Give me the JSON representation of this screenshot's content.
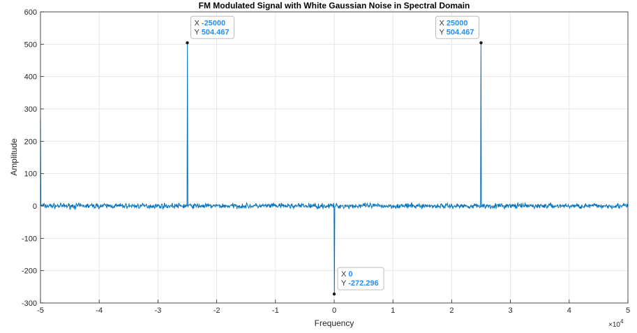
{
  "chart_data": {
    "type": "line",
    "title": "FM Modulated Signal with White Gaussian Noise in Spectral Domain",
    "xlabel": "Frequency",
    "ylabel": "Amplitude",
    "x_exponent_label": "×10",
    "x_exponent_power": "4",
    "xlim": [
      -50000,
      50000
    ],
    "ylim": [
      -300,
      600
    ],
    "x_scale_divisor": 10000,
    "xticks": [
      -50000,
      -40000,
      -30000,
      -20000,
      -10000,
      0,
      10000,
      20000,
      30000,
      40000,
      50000
    ],
    "xtick_labels": [
      "-5",
      "-4",
      "-3",
      "-2",
      "-1",
      "0",
      "1",
      "2",
      "3",
      "4",
      "5"
    ],
    "yticks": [
      -300,
      -200,
      -100,
      0,
      100,
      200,
      300,
      400,
      500,
      600
    ],
    "ytick_labels": [
      "-300",
      "-200",
      "-100",
      "0",
      "100",
      "200",
      "300",
      "400",
      "500",
      "600"
    ],
    "grid": true,
    "series_color": "#0072BD",
    "noise_amplitude": 8,
    "spikes": [
      {
        "x": -50000,
        "y": 272
      },
      {
        "x": -25000,
        "y": 504.467
      },
      {
        "x": 0,
        "y": -272.296
      },
      {
        "x": 25000,
        "y": 504.467
      }
    ],
    "datatips": [
      {
        "x_key": "X",
        "x_val": "-25000",
        "y_key": "Y",
        "y_val": "504.467",
        "x": -25000,
        "y": 504.467
      },
      {
        "x_key": "X",
        "x_val": "25000",
        "y_key": "Y",
        "y_val": "504.467",
        "x": 25000,
        "y": 504.467
      },
      {
        "x_key": "X",
        "x_val": "0",
        "y_key": "Y",
        "y_val": "-272.296",
        "x": 0,
        "y": -272.296
      }
    ]
  }
}
